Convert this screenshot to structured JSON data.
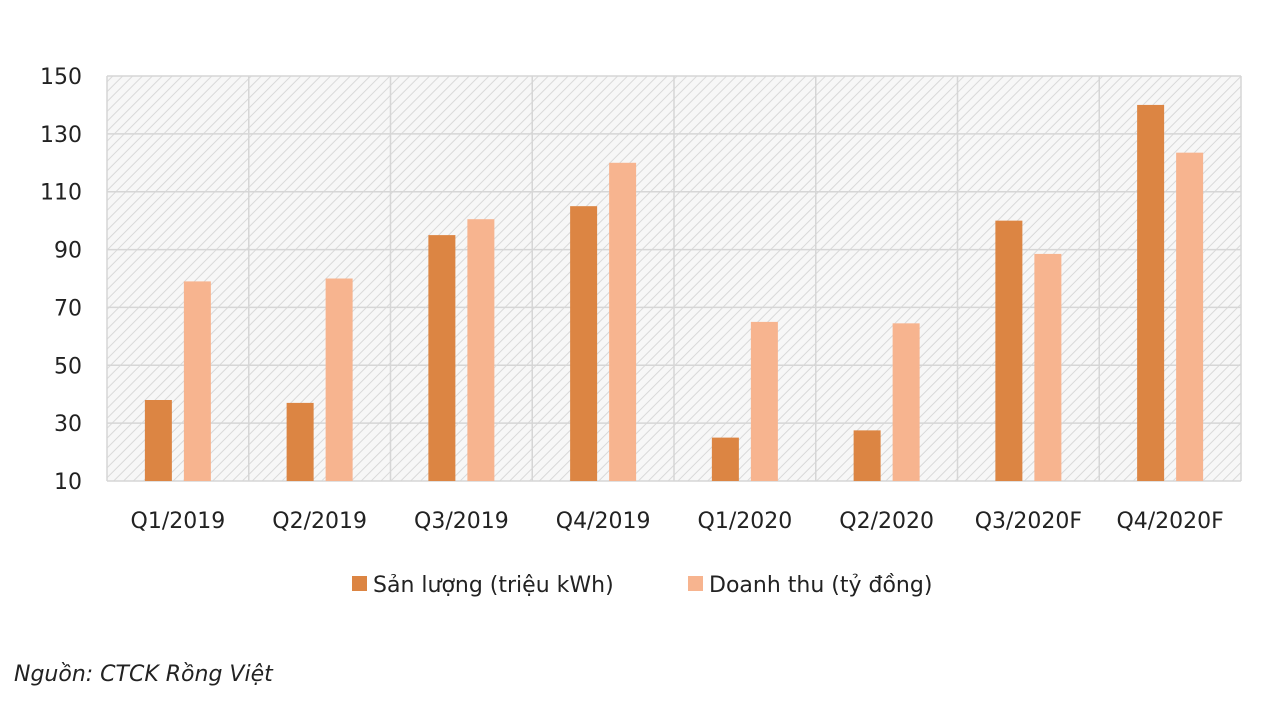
{
  "chart_data": {
    "type": "bar",
    "categories": [
      "Q1/2019",
      "Q2/2019",
      "Q3/2019",
      "Q4/2019",
      "Q1/2020",
      "Q2/2020",
      "Q3/2020F",
      "Q4/2020F"
    ],
    "series": [
      {
        "name": "Sản lượng (triệu kWh)",
        "values": [
          38,
          37,
          95,
          105,
          25,
          27.5,
          100,
          140
        ],
        "color": "#dc8543"
      },
      {
        "name": "Doanh thu (tỷ đồng)",
        "values": [
          79,
          80,
          100.5,
          120,
          65,
          64.5,
          88.5,
          123.5
        ],
        "color": "#f7b48f"
      }
    ],
    "ylim": [
      10,
      150
    ],
    "yticks": [
      10,
      30,
      50,
      70,
      90,
      110,
      130,
      150
    ],
    "grid": true,
    "legend_position": "bottom",
    "title": "",
    "xlabel": "",
    "ylabel": ""
  },
  "source": "Nguồn: CTCK Rồng Việt"
}
